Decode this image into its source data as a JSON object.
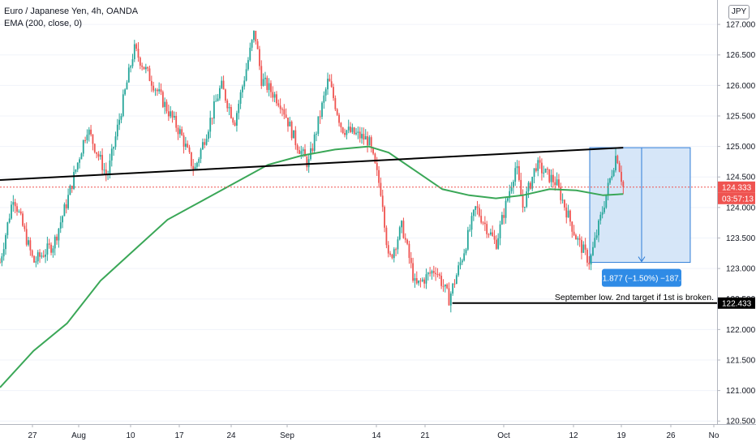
{
  "legend": {
    "symbol": "Euro / Japanese Yen, 4h, OANDA",
    "indicator": "EMA (200, close, 0)"
  },
  "currency_badge": "JPY",
  "price_labels": {
    "last_price": "124.333",
    "countdown": "03:57:13",
    "level": "122.433"
  },
  "annotations": {
    "measure": "−1.877 (−1.50%) −187.7",
    "note": "September low. 2nd target if 1st is broken."
  },
  "colors": {
    "up": "#26a69a",
    "down": "#ef5350",
    "ema": "#3aa757",
    "trendline": "#000000",
    "measure_fill": "#cfe2f7",
    "measure_stroke": "#2f7ed8",
    "last_price_label": "#ef5350",
    "level_label": "#000000"
  },
  "chart_data": {
    "type": "candlestick",
    "title": "Euro / Japanese Yen, 4h, OANDA",
    "y_axis_ticks": [
      "127.000",
      "126.500",
      "126.000",
      "125.500",
      "125.000",
      "124.500",
      "124.000",
      "123.500",
      "123.000",
      "122.500",
      "122.000",
      "121.500",
      "121.000",
      "120.500"
    ],
    "x_axis_ticks": [
      "27",
      "Aug",
      "10",
      "17",
      "24",
      "Sep",
      "14",
      "21",
      "Oct",
      "12",
      "19",
      "26",
      "No"
    ],
    "ylim": [
      120.45,
      127.4
    ],
    "price_path": [
      {
        "t": 0,
        "price": 123.1
      },
      {
        "t": 2,
        "price": 124.2
      },
      {
        "t": 5,
        "price": 123.1
      },
      {
        "t": 8,
        "price": 123.4
      },
      {
        "t": 10,
        "price": 124.1
      },
      {
        "t": 13,
        "price": 125.3
      },
      {
        "t": 16,
        "price": 124.5
      },
      {
        "t": 20,
        "price": 126.6
      },
      {
        "t": 23,
        "price": 126.0
      },
      {
        "t": 27,
        "price": 125.2
      },
      {
        "t": 29,
        "price": 124.6
      },
      {
        "t": 33,
        "price": 126.0
      },
      {
        "t": 35,
        "price": 125.4
      },
      {
        "t": 38,
        "price": 126.9
      },
      {
        "t": 39,
        "price": 126.1
      },
      {
        "t": 42,
        "price": 125.7
      },
      {
        "t": 44,
        "price": 125.1
      },
      {
        "t": 46,
        "price": 124.7
      },
      {
        "t": 49,
        "price": 126.1
      },
      {
        "t": 51,
        "price": 125.3
      },
      {
        "t": 55,
        "price": 125.1
      },
      {
        "t": 57,
        "price": 124.2
      },
      {
        "t": 58,
        "price": 123.1
      },
      {
        "t": 60,
        "price": 123.7
      },
      {
        "t": 62,
        "price": 122.7
      },
      {
        "t": 65,
        "price": 123.0
      },
      {
        "t": 67,
        "price": 122.5
      },
      {
        "t": 69,
        "price": 123.2
      },
      {
        "t": 71,
        "price": 124.0
      },
      {
        "t": 74,
        "price": 123.4
      },
      {
        "t": 77,
        "price": 124.7
      },
      {
        "t": 78,
        "price": 124.0
      },
      {
        "t": 80,
        "price": 124.7
      },
      {
        "t": 83,
        "price": 124.4
      },
      {
        "t": 86,
        "price": 123.5
      },
      {
        "t": 88,
        "price": 123.1
      },
      {
        "t": 92,
        "price": 124.9
      },
      {
        "t": 93,
        "price": 124.33
      }
    ],
    "ema200_path": [
      {
        "t": 0,
        "price": 121.05
      },
      {
        "t": 5,
        "price": 121.65
      },
      {
        "t": 10,
        "price": 122.1
      },
      {
        "t": 15,
        "price": 122.8
      },
      {
        "t": 20,
        "price": 123.3
      },
      {
        "t": 25,
        "price": 123.8
      },
      {
        "t": 30,
        "price": 124.1
      },
      {
        "t": 35,
        "price": 124.4
      },
      {
        "t": 40,
        "price": 124.7
      },
      {
        "t": 45,
        "price": 124.85
      },
      {
        "t": 50,
        "price": 124.95
      },
      {
        "t": 55,
        "price": 125.0
      },
      {
        "t": 58,
        "price": 124.9
      },
      {
        "t": 62,
        "price": 124.6
      },
      {
        "t": 66,
        "price": 124.3
      },
      {
        "t": 70,
        "price": 124.2
      },
      {
        "t": 74,
        "price": 124.15
      },
      {
        "t": 78,
        "price": 124.2
      },
      {
        "t": 82,
        "price": 124.3
      },
      {
        "t": 86,
        "price": 124.28
      },
      {
        "t": 90,
        "price": 124.2
      },
      {
        "t": 93,
        "price": 124.22
      }
    ],
    "trendline": [
      {
        "t": 0,
        "price": 124.45
      },
      {
        "t": 93,
        "price": 124.98
      }
    ],
    "horizontal_level": 122.433,
    "measure_box": {
      "t_start": 88,
      "t_end": 103,
      "price_top": 124.98,
      "price_bottom": 123.1
    },
    "last_price": 124.333
  }
}
